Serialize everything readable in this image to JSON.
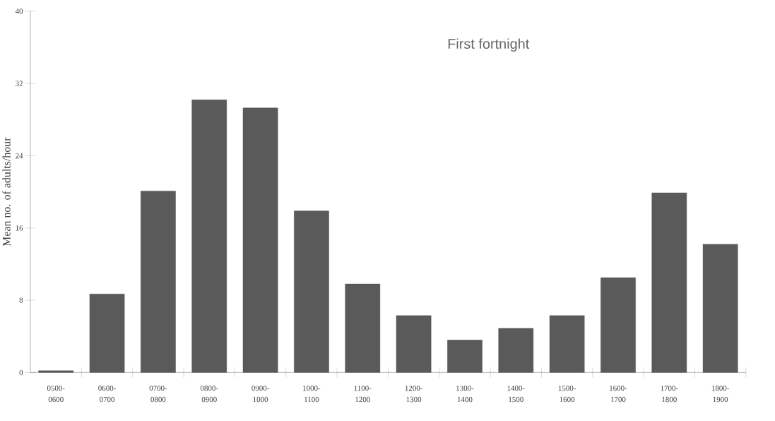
{
  "chart_data": {
    "type": "bar",
    "title": "First fortnight",
    "ylabel": "Mean no. of adults/hour",
    "categories": [
      "0500-0600",
      "0600-0700",
      "0700-0800",
      "0800-0900",
      "0900-1000",
      "1000-1100",
      "1100-1200",
      "1200-1300",
      "1300-1400",
      "1400-1500",
      "1500-1600",
      "1600-1700",
      "1700-1800",
      "1800-1900"
    ],
    "values": [
      0.2,
      8.7,
      20.1,
      30.2,
      29.3,
      17.9,
      9.8,
      6.3,
      3.6,
      4.9,
      6.3,
      10.5,
      19.9,
      14.2
    ],
    "color": "#5a5a5a",
    "ylim": [
      0,
      40
    ],
    "yticks": [
      0,
      8,
      16,
      24,
      32,
      40
    ],
    "grid": false
  }
}
